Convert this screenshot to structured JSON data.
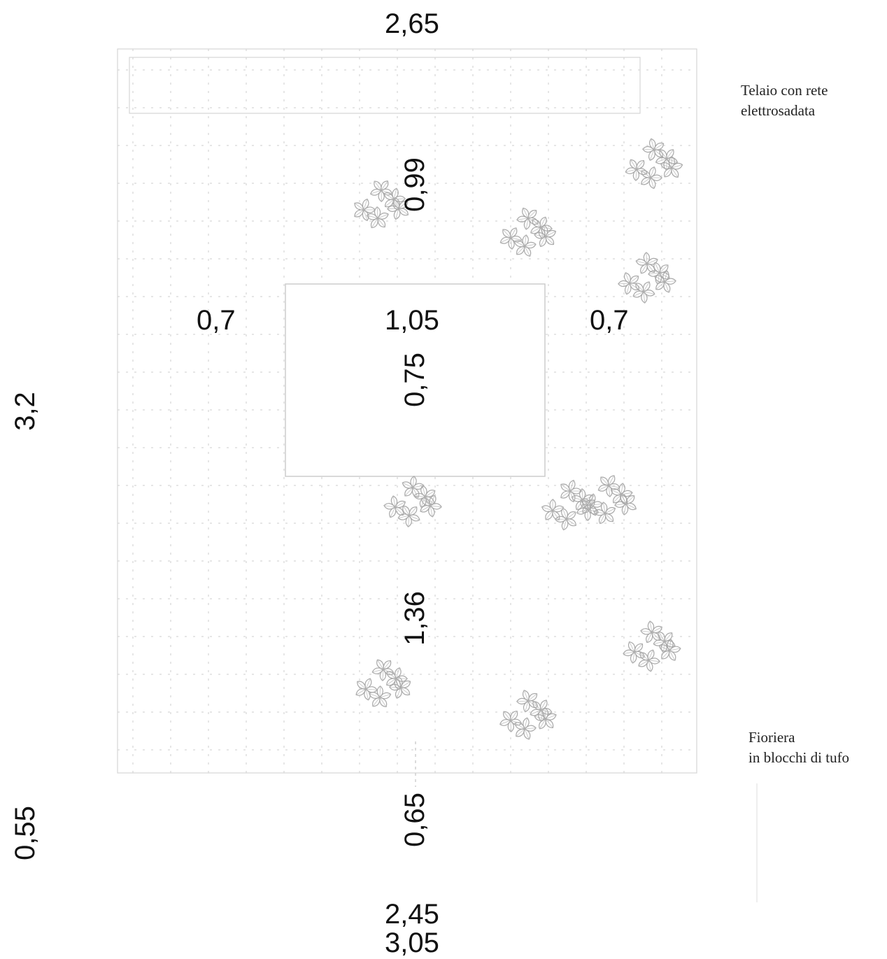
{
  "labels": {
    "frame": "Telaio con rete\nelettrosadata",
    "planter": "Fioriera\nin blocchi di tufo"
  },
  "dimensions": {
    "top_width": "2,65",
    "left_band": "0,7",
    "opening_width": "1,05",
    "right_band": "0,7",
    "upper_height": "0,99",
    "opening_height": "0,75",
    "lower_height": "1,36",
    "total_height": "3,2",
    "base_offset_left": "0,55",
    "base_offset_center": "0,65",
    "bottom_width_inner": "2,45",
    "bottom_width_outer": "3,05"
  },
  "icons": {
    "plant": "leaf-cluster-icon"
  }
}
